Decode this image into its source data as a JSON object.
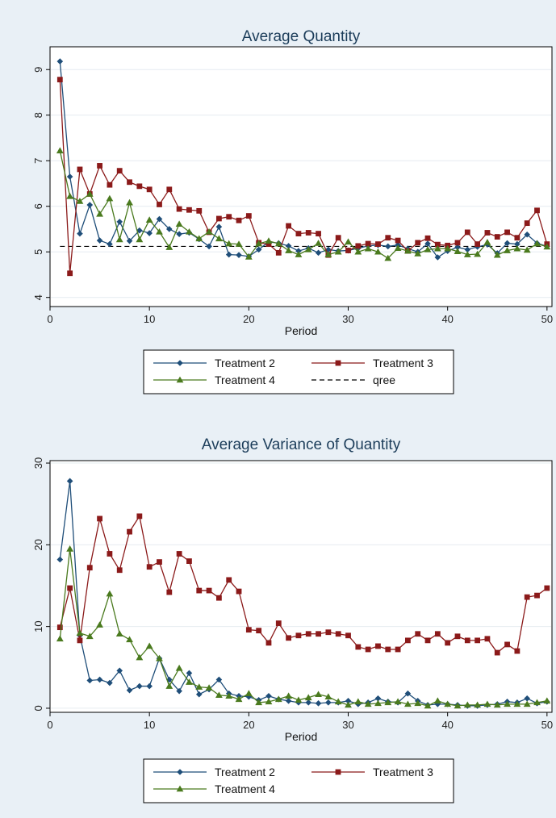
{
  "colors": {
    "outer_bg": "#e9f0f6",
    "plot_bg": "#ffffff",
    "title": "#1c3d5a",
    "grid": "#e6ecf1",
    "treatment2": "#1f4e79",
    "treatment3": "#8b1a1a",
    "treatment4": "#4a7a1e",
    "qree": "#000000"
  },
  "chart_data": [
    {
      "type": "line",
      "title": "Average Quantity",
      "xlabel": "Period",
      "ylabel": "",
      "xlim": [
        0,
        50.5
      ],
      "ylim": [
        3.8,
        9.5
      ],
      "xticks": [
        0,
        10,
        20,
        30,
        40,
        50
      ],
      "yticks": [
        4,
        5,
        6,
        7,
        8,
        9
      ],
      "grid": true,
      "legend_position": "bottom",
      "x": [
        1,
        2,
        3,
        4,
        5,
        6,
        7,
        8,
        9,
        10,
        11,
        12,
        13,
        14,
        15,
        16,
        17,
        18,
        19,
        20,
        21,
        22,
        23,
        24,
        25,
        26,
        27,
        28,
        29,
        30,
        31,
        32,
        33,
        34,
        35,
        36,
        37,
        38,
        39,
        40,
        41,
        42,
        43,
        44,
        45,
        46,
        47,
        48,
        49,
        50
      ],
      "series": [
        {
          "name": "Treatment 2",
          "marker": "diamond",
          "color_key": "treatment2",
          "values": [
            9.18,
            6.65,
            5.4,
            6.03,
            5.25,
            5.17,
            5.66,
            5.24,
            5.47,
            5.41,
            5.72,
            5.5,
            5.39,
            5.42,
            5.28,
            5.12,
            5.55,
            4.94,
            4.93,
            4.9,
            5.05,
            5.22,
            5.19,
            5.13,
            5.02,
            5.08,
            4.98,
            5.05,
            5.02,
            5.03,
            5.08,
            5.13,
            5.15,
            5.12,
            5.15,
            5.07,
            5.0,
            5.18,
            4.88,
            5.02,
            5.1,
            5.05,
            5.11,
            5.16,
            4.97,
            5.19,
            5.17,
            5.38,
            5.19,
            5.12
          ]
        },
        {
          "name": "Treatment 3",
          "marker": "square",
          "color_key": "treatment3",
          "values": [
            8.78,
            4.53,
            6.81,
            6.27,
            6.89,
            6.47,
            6.78,
            6.53,
            6.44,
            6.37,
            6.04,
            6.37,
            5.94,
            5.92,
            5.9,
            5.43,
            5.73,
            5.77,
            5.69,
            5.79,
            5.2,
            5.17,
            4.98,
            5.57,
            5.4,
            5.42,
            5.4,
            4.93,
            5.31,
            5.03,
            5.13,
            5.18,
            5.17,
            5.31,
            5.25,
            5.02,
            5.2,
            5.3,
            5.16,
            5.14,
            5.2,
            5.43,
            5.17,
            5.42,
            5.33,
            5.43,
            5.31,
            5.63,
            5.91,
            5.17
          ]
        },
        {
          "name": "Treatment 4",
          "marker": "triangle",
          "color_key": "treatment4",
          "values": [
            7.22,
            6.22,
            6.11,
            6.27,
            5.83,
            6.17,
            5.27,
            6.08,
            5.27,
            5.7,
            5.44,
            5.1,
            5.61,
            5.44,
            5.29,
            5.44,
            5.29,
            5.18,
            5.17,
            4.89,
            5.18,
            5.24,
            5.18,
            5.03,
            4.94,
            5.05,
            5.19,
            4.94,
            5.0,
            5.22,
            5.0,
            5.07,
            5.0,
            4.86,
            5.08,
            5.02,
            4.96,
            5.05,
            5.07,
            5.07,
            5.01,
            4.94,
            4.95,
            5.21,
            4.93,
            5.03,
            5.07,
            5.04,
            5.18,
            5.11
          ]
        }
      ],
      "reference_line": {
        "name": "qree",
        "value": 5.12,
        "style": "dashed",
        "color_key": "qree"
      },
      "legend": [
        {
          "label": "Treatment 2",
          "key": "treatment2",
          "marker": "diamond"
        },
        {
          "label": "Treatment 3",
          "key": "treatment3",
          "marker": "square"
        },
        {
          "label": "Treatment 4",
          "key": "treatment4",
          "marker": "triangle"
        },
        {
          "label": "qree",
          "key": "qree",
          "marker": "dashed"
        }
      ]
    },
    {
      "type": "line",
      "title": "Average Variance of Quantity",
      "xlabel": "Period",
      "ylabel": "",
      "xlim": [
        0,
        50.5
      ],
      "ylim": [
        -0.5,
        30.3
      ],
      "xticks": [
        0,
        10,
        20,
        30,
        40,
        50
      ],
      "yticks": [
        0,
        10,
        20,
        30
      ],
      "grid": true,
      "legend_position": "bottom",
      "x": [
        1,
        2,
        3,
        4,
        5,
        6,
        7,
        8,
        9,
        10,
        11,
        12,
        13,
        14,
        15,
        16,
        17,
        18,
        19,
        20,
        21,
        22,
        23,
        24,
        25,
        26,
        27,
        28,
        29,
        30,
        31,
        32,
        33,
        34,
        35,
        36,
        37,
        38,
        39,
        40,
        41,
        42,
        43,
        44,
        45,
        46,
        47,
        48,
        49,
        50
      ],
      "series": [
        {
          "name": "Treatment 2",
          "marker": "diamond",
          "color_key": "treatment2",
          "values": [
            18.2,
            27.8,
            8.9,
            3.4,
            3.5,
            3.1,
            4.6,
            2.2,
            2.7,
            2.7,
            6.1,
            3.5,
            2.1,
            4.3,
            1.7,
            2.3,
            3.5,
            1.8,
            1.5,
            1.4,
            1.0,
            1.5,
            1.1,
            0.9,
            0.7,
            0.7,
            0.6,
            0.7,
            0.7,
            0.9,
            0.5,
            0.7,
            1.2,
            0.8,
            0.7,
            1.8,
            0.9,
            0.4,
            0.5,
            0.5,
            0.4,
            0.3,
            0.3,
            0.4,
            0.5,
            0.8,
            0.7,
            1.2,
            0.6,
            0.8
          ]
        },
        {
          "name": "Treatment 3",
          "marker": "square",
          "color_key": "treatment3",
          "values": [
            9.9,
            14.7,
            8.3,
            17.2,
            23.2,
            18.9,
            16.9,
            21.6,
            23.5,
            17.3,
            17.9,
            14.2,
            18.9,
            18.0,
            14.4,
            14.4,
            13.5,
            15.7,
            14.3,
            9.6,
            9.5,
            8.0,
            10.4,
            8.6,
            8.9,
            9.1,
            9.1,
            9.3,
            9.1,
            8.9,
            7.5,
            7.2,
            7.6,
            7.2,
            7.2,
            8.3,
            9.1,
            8.3,
            9.1,
            8.0,
            8.8,
            8.3,
            8.3,
            8.5,
            6.8,
            7.8,
            7.0,
            13.6,
            13.8,
            14.7
          ]
        },
        {
          "name": "Treatment 4",
          "marker": "triangle",
          "color_key": "treatment4",
          "values": [
            8.5,
            19.5,
            9.2,
            8.8,
            10.2,
            14.0,
            9.1,
            8.4,
            6.2,
            7.6,
            6.1,
            2.7,
            4.9,
            3.2,
            2.6,
            2.5,
            1.6,
            1.5,
            1.1,
            1.8,
            0.7,
            0.8,
            1.1,
            1.5,
            1.0,
            1.3,
            1.7,
            1.4,
            0.8,
            0.4,
            0.8,
            0.5,
            0.6,
            0.7,
            0.8,
            0.5,
            0.6,
            0.3,
            0.9,
            0.5,
            0.3,
            0.4,
            0.4,
            0.5,
            0.4,
            0.5,
            0.5,
            0.5,
            0.7,
            0.9
          ]
        }
      ],
      "legend": [
        {
          "label": "Treatment 2",
          "key": "treatment2",
          "marker": "diamond"
        },
        {
          "label": "Treatment 3",
          "key": "treatment3",
          "marker": "square"
        },
        {
          "label": "Treatment 4",
          "key": "treatment4",
          "marker": "triangle"
        }
      ]
    }
  ]
}
